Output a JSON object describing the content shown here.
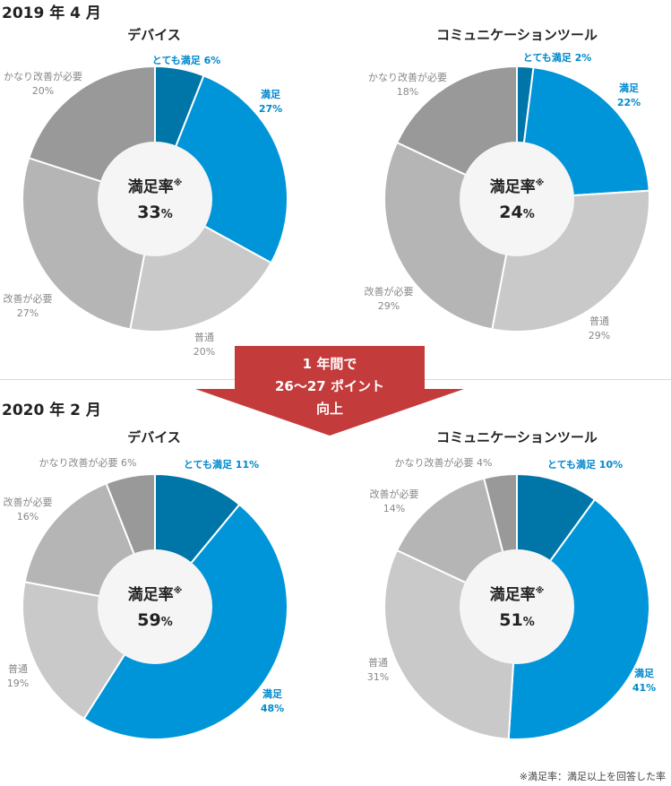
{
  "footnote": "※満足率：満足以上を回答した率",
  "arrow": {
    "line1": "1 年間で",
    "line2": "26〜27 ポイント",
    "line3": "向上"
  },
  "colors": {
    "very_satisfied": "#0076a8",
    "satisfied": "#0095d9",
    "normal": "#c9c9c9",
    "needs_improvement": "#b5b5b5",
    "needs_much_improvement": "#999999",
    "center_fill": "#f5f5f5",
    "arrow": "#c43b3b",
    "label_blue": "#0088cc",
    "label_gray": "#888888"
  },
  "periods": [
    {
      "title": "2019 年 4 月"
    },
    {
      "title": "2020 年 2 月"
    }
  ],
  "chart_data": [
    {
      "type": "pie",
      "period": "2019 年 4 月",
      "title": "デバイス",
      "center_label": "満足率",
      "center_mark": "※",
      "center_value": 33,
      "slices": [
        {
          "name": "とても満足",
          "value": 6
        },
        {
          "name": "満足",
          "value": 27
        },
        {
          "name": "普通",
          "value": 20
        },
        {
          "name": "改善が必要",
          "value": 27
        },
        {
          "name": "かなり改善が必要",
          "value": 20
        }
      ]
    },
    {
      "type": "pie",
      "period": "2019 年 4 月",
      "title": "コミュニケーションツール",
      "center_label": "満足率",
      "center_mark": "※",
      "center_value": 24,
      "slices": [
        {
          "name": "とても満足",
          "value": 2
        },
        {
          "name": "満足",
          "value": 22
        },
        {
          "name": "普通",
          "value": 29
        },
        {
          "name": "改善が必要",
          "value": 29
        },
        {
          "name": "かなり改善が必要",
          "value": 18
        }
      ]
    },
    {
      "type": "pie",
      "period": "2020 年 2 月",
      "title": "デバイス",
      "center_label": "満足率",
      "center_mark": "※",
      "center_value": 59,
      "slices": [
        {
          "name": "とても満足",
          "value": 11
        },
        {
          "name": "満足",
          "value": 48
        },
        {
          "name": "普通",
          "value": 19
        },
        {
          "name": "改善が必要",
          "value": 16
        },
        {
          "name": "かなり改善が必要",
          "value": 6
        }
      ]
    },
    {
      "type": "pie",
      "period": "2020 年 2 月",
      "title": "コミュニケーションツール",
      "center_label": "満足率",
      "center_mark": "※",
      "center_value": 51,
      "slices": [
        {
          "name": "とても満足",
          "value": 10
        },
        {
          "name": "満足",
          "value": 41
        },
        {
          "name": "普通",
          "value": 31
        },
        {
          "name": "改善が必要",
          "value": 14
        },
        {
          "name": "かなり改善が必要",
          "value": 4
        }
      ]
    }
  ]
}
